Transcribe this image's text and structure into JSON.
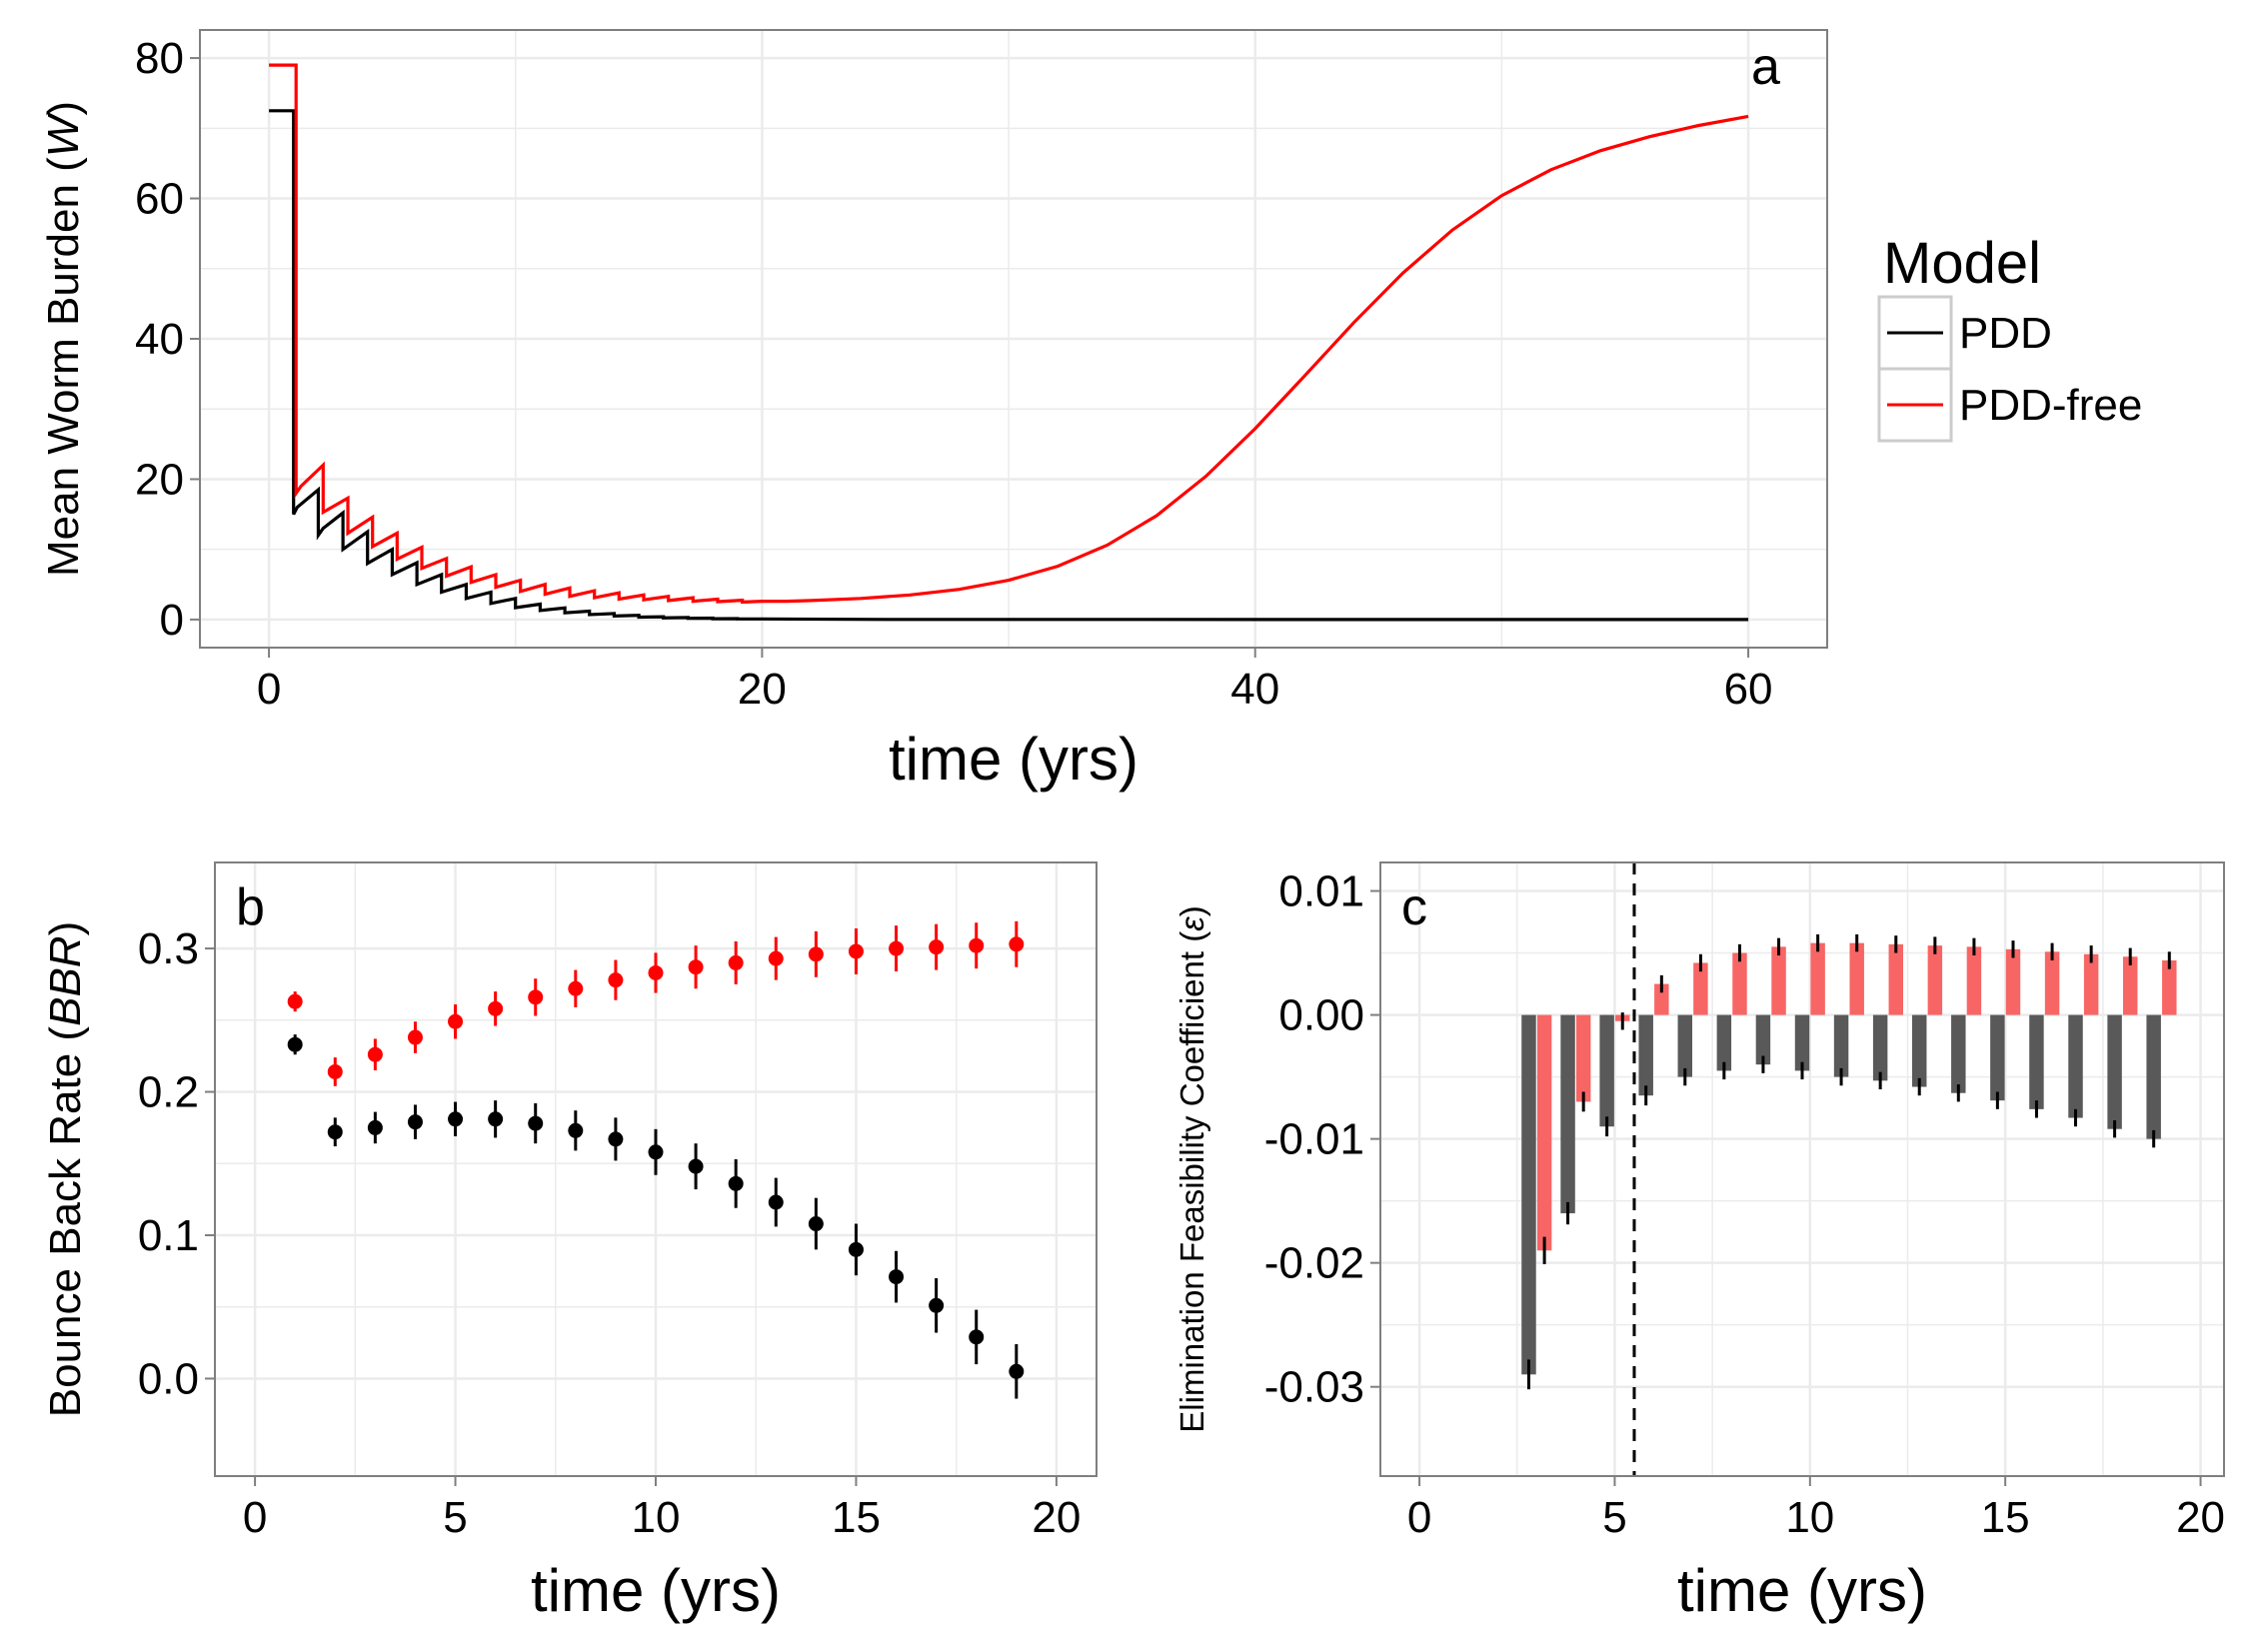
{
  "legend": {
    "title": "Model",
    "items": [
      {
        "label": "PDD",
        "color": "#000000"
      },
      {
        "label": "PDD-free",
        "color": "#ff0000"
      }
    ]
  },
  "colors": {
    "pdd": "#000000",
    "pdd_free": "#ff0000",
    "pdd_bar": "#595959",
    "pdd_free_bar": "#f86565",
    "panel_border": "#7f7f7f",
    "grid": "#ebebeb"
  },
  "chart_data": [
    {
      "panel": "a",
      "type": "line",
      "xlabel": "time (yrs)",
      "ylabel_parts": [
        "Mean Worm Burden (",
        "W",
        ")"
      ],
      "xlim": [
        -2.8,
        63.2
      ],
      "ylim": [
        -4,
        84
      ],
      "xticks": [
        0,
        20,
        40,
        60
      ],
      "xtick_labels": [
        "0",
        "20",
        "40",
        "60"
      ],
      "yticks": [
        0,
        20,
        40,
        60,
        80
      ],
      "ytick_labels": [
        "0",
        "20",
        "40",
        "60",
        "80"
      ],
      "series": [
        {
          "name": "PDD",
          "points": [
            [
              0,
              72.5
            ],
            [
              1,
              72.5
            ],
            [
              1,
              15
            ],
            [
              1.15,
              16
            ],
            [
              2,
              18.5
            ],
            [
              2,
              12
            ],
            [
              2.2,
              13
            ],
            [
              3,
              15.2
            ],
            [
              3,
              10
            ],
            [
              4,
              12.5
            ],
            [
              4,
              8
            ],
            [
              5,
              10
            ],
            [
              5,
              6.4
            ],
            [
              6,
              8.1
            ],
            [
              6,
              5
            ],
            [
              7,
              6.4
            ],
            [
              7,
              3.9
            ],
            [
              8,
              5
            ],
            [
              8,
              3
            ],
            [
              9,
              3.9
            ],
            [
              9,
              2.3
            ],
            [
              10,
              3
            ],
            [
              10,
              1.7
            ],
            [
              11,
              2.2
            ],
            [
              11,
              1.3
            ],
            [
              12,
              1.65
            ],
            [
              12,
              0.95
            ],
            [
              13,
              1.2
            ],
            [
              13,
              0.7
            ],
            [
              14,
              0.85
            ],
            [
              14,
              0.5
            ],
            [
              15,
              0.6
            ],
            [
              15,
              0.35
            ],
            [
              16,
              0.4
            ],
            [
              16,
              0.25
            ],
            [
              17,
              0.28
            ],
            [
              17,
              0.18
            ],
            [
              18,
              0.2
            ],
            [
              18,
              0.12
            ],
            [
              19,
              0.13
            ],
            [
              19,
              0.08
            ],
            [
              20,
              0.08
            ],
            [
              25,
              0.02
            ],
            [
              60,
              0
            ]
          ]
        },
        {
          "name": "PDD-free",
          "points": [
            [
              0,
              79
            ],
            [
              1.1,
              79
            ],
            [
              1.1,
              18
            ],
            [
              1.3,
              19
            ],
            [
              2.2,
              22
            ],
            [
              2.2,
              15.3
            ],
            [
              3.2,
              17.3
            ],
            [
              3.2,
              12.3
            ],
            [
              4.2,
              14.6
            ],
            [
              4.2,
              10.4
            ],
            [
              5.2,
              12.3
            ],
            [
              5.2,
              8.6
            ],
            [
              6.2,
              10.3
            ],
            [
              6.2,
              7.3
            ],
            [
              7.2,
              8.7
            ],
            [
              7.2,
              6.2
            ],
            [
              8.2,
              7.5
            ],
            [
              8.2,
              5.3
            ],
            [
              9.2,
              6.4
            ],
            [
              9.2,
              4.6
            ],
            [
              10.2,
              5.6
            ],
            [
              10.2,
              4
            ],
            [
              11.2,
              5
            ],
            [
              11.2,
              3.6
            ],
            [
              12.2,
              4.5
            ],
            [
              12.2,
              3.3
            ],
            [
              13.2,
              4.1
            ],
            [
              13.2,
              3.1
            ],
            [
              14.2,
              3.8
            ],
            [
              14.2,
              2.9
            ],
            [
              15.2,
              3.5
            ],
            [
              15.2,
              2.8
            ],
            [
              16.2,
              3.3
            ],
            [
              16.2,
              2.7
            ],
            [
              17.2,
              3.1
            ],
            [
              17.2,
              2.6
            ],
            [
              18.2,
              2.9
            ],
            [
              18.2,
              2.55
            ],
            [
              19.2,
              2.75
            ],
            [
              19.2,
              2.5
            ],
            [
              20,
              2.6
            ],
            [
              21,
              2.6
            ],
            [
              22,
              2.7
            ],
            [
              24,
              3
            ],
            [
              26,
              3.5
            ],
            [
              28,
              4.3
            ],
            [
              30,
              5.6
            ],
            [
              32,
              7.6
            ],
            [
              34,
              10.6
            ],
            [
              36,
              14.8
            ],
            [
              38,
              20.4
            ],
            [
              40,
              27.2
            ],
            [
              42,
              34.7
            ],
            [
              44,
              42.3
            ],
            [
              46,
              49.4
            ],
            [
              48,
              55.5
            ],
            [
              50,
              60.4
            ],
            [
              52,
              64.1
            ],
            [
              54,
              66.8
            ],
            [
              56,
              68.8
            ],
            [
              58,
              70.4
            ],
            [
              60,
              71.7
            ]
          ]
        }
      ]
    },
    {
      "panel": "b",
      "type": "scatter",
      "xlabel": "time (yrs)",
      "ylabel_parts": [
        "Bounce Back Rate (",
        "BBR",
        ")"
      ],
      "xlim": [
        -1,
        21
      ],
      "ylim": [
        -0.068,
        0.36
      ],
      "xticks": [
        0,
        5,
        10,
        15,
        20
      ],
      "xtick_labels": [
        "0",
        "5",
        "10",
        "15",
        "20"
      ],
      "yticks": [
        0,
        0.1,
        0.2,
        0.3
      ],
      "ytick_labels": [
        "0.0",
        "0.1",
        "0.2",
        "0.3"
      ],
      "series": [
        {
          "name": "PDD-free",
          "x": [
            1,
            2,
            3,
            4,
            5,
            6,
            7,
            8,
            9,
            10,
            11,
            12,
            13,
            14,
            15,
            16,
            17,
            18,
            19
          ],
          "y": [
            0.263,
            0.214,
            0.226,
            0.238,
            0.249,
            0.258,
            0.266,
            0.272,
            0.278,
            0.283,
            0.287,
            0.29,
            0.293,
            0.296,
            0.298,
            0.3,
            0.301,
            0.302,
            0.303
          ],
          "err": [
            0.007,
            0.01,
            0.011,
            0.011,
            0.012,
            0.012,
            0.013,
            0.013,
            0.014,
            0.014,
            0.015,
            0.015,
            0.015,
            0.016,
            0.016,
            0.016,
            0.016,
            0.016,
            0.016
          ]
        },
        {
          "name": "PDD",
          "x": [
            1,
            2,
            3,
            4,
            5,
            6,
            7,
            8,
            9,
            10,
            11,
            12,
            13,
            14,
            15,
            16,
            17,
            18,
            19
          ],
          "y": [
            0.233,
            0.172,
            0.175,
            0.179,
            0.181,
            0.181,
            0.178,
            0.173,
            0.167,
            0.158,
            0.148,
            0.136,
            0.123,
            0.108,
            0.09,
            0.071,
            0.051,
            0.029,
            0.005
          ],
          "err": [
            0.007,
            0.01,
            0.011,
            0.012,
            0.012,
            0.013,
            0.014,
            0.014,
            0.015,
            0.016,
            0.016,
            0.017,
            0.017,
            0.018,
            0.018,
            0.018,
            0.019,
            0.019,
            0.019
          ]
        }
      ]
    },
    {
      "panel": "c",
      "type": "bar",
      "xlabel": "time (yrs)",
      "ylabel_parts": [
        "Elimination Feasibility Coefficient (",
        "ε",
        ")"
      ],
      "xlim": [
        -1,
        20.6
      ],
      "ylim": [
        -0.0372,
        0.0123
      ],
      "xticks": [
        0,
        5,
        10,
        15,
        20
      ],
      "xtick_labels": [
        "0",
        "5",
        "10",
        "15",
        "20"
      ],
      "yticks": [
        0.01,
        0,
        -0.01,
        -0.02,
        -0.03
      ],
      "ytick_labels": [
        "0.01",
        "0.00",
        "-0.01",
        "-0.02",
        "-0.03"
      ],
      "vline": 5.5,
      "series": [
        {
          "name": "PDD",
          "x": [
            3,
            4,
            5,
            6,
            7,
            8,
            9,
            10,
            11,
            12,
            13,
            14,
            15,
            16,
            17,
            18,
            19
          ],
          "values": [
            -0.029,
            -0.016,
            -0.009,
            -0.0065,
            -0.005,
            -0.0045,
            -0.004,
            -0.0045,
            -0.005,
            -0.0053,
            -0.0058,
            -0.0063,
            -0.0069,
            -0.0076,
            -0.0083,
            -0.0092,
            -0.01
          ],
          "err": [
            0.0012,
            0.0009,
            0.0008,
            0.0008,
            0.0007,
            0.0007,
            0.0007,
            0.0007,
            0.0007,
            0.0007,
            0.0007,
            0.0007,
            0.0007,
            0.0007,
            0.0007,
            0.0007,
            0.0007
          ]
        },
        {
          "name": "PDD-free",
          "x": [
            3,
            4,
            5,
            6,
            7,
            8,
            9,
            10,
            11,
            12,
            13,
            14,
            15,
            16,
            17,
            18,
            19
          ],
          "values": [
            -0.019,
            -0.007,
            -0.0005,
            0.0025,
            0.0042,
            0.005,
            0.0055,
            0.0058,
            0.0058,
            0.0057,
            0.0056,
            0.0055,
            0.0053,
            0.0051,
            0.0049,
            0.0047,
            0.0044
          ],
          "err": [
            0.0011,
            0.0008,
            0.0007,
            0.0007,
            0.0007,
            0.0007,
            0.0007,
            0.0007,
            0.0007,
            0.0007,
            0.0007,
            0.0007,
            0.0007,
            0.0007,
            0.0007,
            0.0007,
            0.0007
          ]
        }
      ]
    }
  ]
}
